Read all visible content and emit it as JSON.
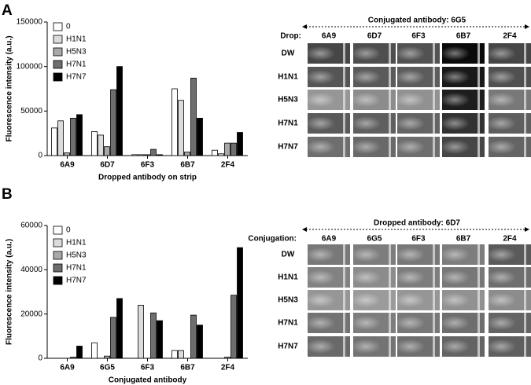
{
  "panels": [
    "A",
    "B"
  ],
  "chart_data": [
    {
      "type": "bar",
      "y_label": "Fluorescence intensity (a.u.)",
      "x_label": "Dropped antibody on strip",
      "categories": [
        "6A9",
        "6D7",
        "6F3",
        "6B7",
        "2F4"
      ],
      "series": [
        {
          "name": "0",
          "color": "#ffffff",
          "values": [
            31000,
            27000,
            1000,
            75000,
            6000
          ]
        },
        {
          "name": "H1N1",
          "color": "#dcdcdc",
          "values": [
            39000,
            23000,
            1000,
            62000,
            2000
          ]
        },
        {
          "name": "H5N3",
          "color": "#a8a8a8",
          "values": [
            3000,
            10000,
            1000,
            4000,
            14000
          ]
        },
        {
          "name": "H7N1",
          "color": "#6e6e6e",
          "values": [
            42000,
            74000,
            7000,
            87000,
            14000
          ]
        },
        {
          "name": "H7N7",
          "color": "#000000",
          "values": [
            46000,
            100000,
            1000,
            42000,
            26000
          ]
        }
      ],
      "ylim": [
        0,
        150000
      ],
      "yticks": [
        0,
        50000,
        100000,
        150000
      ]
    },
    {
      "type": "bar",
      "y_label": "Fluorescence intensity (a.u.)",
      "x_label": "Conjugated antibody",
      "categories": [
        "6A9",
        "6G5",
        "6F3",
        "6B7",
        "2F4"
      ],
      "series": [
        {
          "name": "0",
          "color": "#ffffff",
          "values": [
            0,
            7000,
            0,
            3500,
            0
          ]
        },
        {
          "name": "H1N1",
          "color": "#dcdcdc",
          "values": [
            0,
            0,
            24000,
            3500,
            0
          ]
        },
        {
          "name": "H5N3",
          "color": "#a8a8a8",
          "values": [
            0,
            1000,
            0,
            0,
            500
          ]
        },
        {
          "name": "H7N1",
          "color": "#6e6e6e",
          "values": [
            500,
            18500,
            20500,
            19500,
            28500
          ]
        },
        {
          "name": "H7N7",
          "color": "#000000",
          "values": [
            5500,
            27000,
            17000,
            15000,
            50000
          ]
        }
      ],
      "ylim": [
        0,
        60000
      ],
      "yticks": [
        0,
        20000,
        40000,
        60000
      ]
    }
  ],
  "image_grids": [
    {
      "title": "Conjugated antibody: 6G5",
      "corner_label": "Drop:",
      "columns": [
        "6A9",
        "6D7",
        "6F3",
        "6B7",
        "2F4"
      ],
      "rows": [
        "DW",
        "H1N1",
        "H5N3",
        "H7N1",
        "H7N7"
      ]
    },
    {
      "title": "Dropped antibody: 6D7",
      "corner_label": "Conjugation:",
      "columns": [
        "6A9",
        "6G5",
        "6F3",
        "6B7",
        "2F4"
      ],
      "rows": [
        "DW",
        "H1N1",
        "H5N3",
        "H7N1",
        "H7N7"
      ]
    }
  ]
}
